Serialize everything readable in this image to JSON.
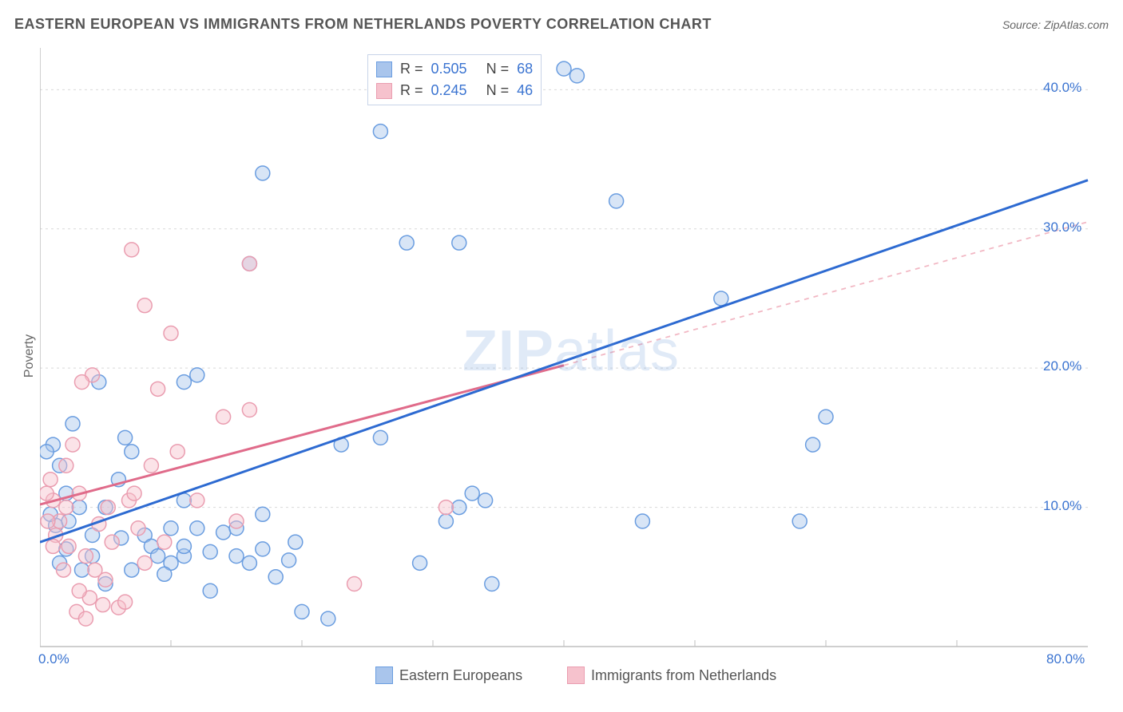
{
  "title": "EASTERN EUROPEAN VS IMMIGRANTS FROM NETHERLANDS POVERTY CORRELATION CHART",
  "source_label": "Source: ",
  "source_name": "ZipAtlas.com",
  "y_axis_label": "Poverty",
  "watermark_prefix": "ZIP",
  "watermark_suffix": "atlas",
  "colors": {
    "blue_fill": "#a9c5ec",
    "blue_stroke": "#6a9de0",
    "pink_fill": "#f6c2cd",
    "pink_stroke": "#ea9db0",
    "blue_line": "#2d6ad1",
    "pink_line": "#e06b8a",
    "pink_dash": "#f2b8c4",
    "grid": "#d9d9d9",
    "axis_line": "#bfbfbf",
    "tick_text": "#3b74d1",
    "title_text": "#555555",
    "bg": "#ffffff"
  },
  "chart": {
    "type": "scatter",
    "xlim": [
      0,
      80
    ],
    "ylim": [
      0,
      43
    ],
    "x_ticks": [
      {
        "v": 0,
        "label": "0.0%"
      },
      {
        "v": 80,
        "label": "80.0%"
      }
    ],
    "y_ticks": [
      {
        "v": 10,
        "label": "10.0%"
      },
      {
        "v": 20,
        "label": "20.0%"
      },
      {
        "v": 30,
        "label": "30.0%"
      },
      {
        "v": 40,
        "label": "40.0%"
      }
    ],
    "y_grid": [
      10,
      20,
      30,
      40
    ],
    "x_grid_minor": [
      10,
      20,
      30,
      40,
      50,
      60,
      70
    ],
    "marker_radius": 9,
    "marker_fill_opacity": 0.45,
    "series": [
      {
        "key": "blue",
        "label": "Eastern Europeans",
        "R": "0.505",
        "N": "68",
        "points": [
          [
            41,
            41
          ],
          [
            17,
            34
          ],
          [
            28,
            29
          ],
          [
            32,
            29
          ],
          [
            44,
            32
          ],
          [
            16,
            27.5
          ],
          [
            26,
            37
          ],
          [
            52,
            25
          ],
          [
            60,
            16.5
          ],
          [
            59,
            14.5
          ],
          [
            58,
            9
          ],
          [
            46,
            9
          ],
          [
            40,
            41.5
          ],
          [
            11,
            19
          ],
          [
            4,
            8
          ],
          [
            3,
            10
          ],
          [
            2,
            11
          ],
          [
            2,
            7
          ],
          [
            1,
            14.5
          ],
          [
            1.5,
            13
          ],
          [
            5,
            4.5
          ],
          [
            7,
            5.5
          ],
          [
            8,
            8
          ],
          [
            8.5,
            7.2
          ],
          [
            9,
            6.5
          ],
          [
            10,
            6
          ],
          [
            11,
            6.5
          ],
          [
            12,
            8.5
          ],
          [
            13,
            4
          ],
          [
            14,
            8.2
          ],
          [
            15,
            6.5
          ],
          [
            16,
            6
          ],
          [
            17,
            9.5
          ],
          [
            18,
            5
          ],
          [
            19,
            6.2
          ],
          [
            20,
            2.5
          ],
          [
            12,
            19.5
          ],
          [
            22,
            2.0
          ],
          [
            7,
            14
          ],
          [
            6.5,
            15
          ],
          [
            4.5,
            19
          ],
          [
            5,
            10
          ],
          [
            6,
            12
          ],
          [
            2.5,
            16
          ],
          [
            0.5,
            14
          ],
          [
            10,
            8.5
          ],
          [
            17,
            7
          ],
          [
            11,
            7.2
          ],
          [
            15,
            8.5
          ],
          [
            29,
            6
          ],
          [
            31,
            9
          ],
          [
            32,
            10
          ],
          [
            33,
            11
          ],
          [
            34,
            10.5
          ],
          [
            34.5,
            4.5
          ],
          [
            4,
            6.5
          ],
          [
            1.2,
            8.7
          ],
          [
            0.8,
            9.5
          ],
          [
            1.5,
            6
          ],
          [
            3.2,
            5.5
          ],
          [
            2.2,
            9
          ],
          [
            23,
            14.5
          ],
          [
            11,
            10.5
          ],
          [
            13,
            6.8
          ],
          [
            26,
            15
          ],
          [
            9.5,
            5.2
          ],
          [
            6.2,
            7.8
          ],
          [
            19.5,
            7.5
          ]
        ],
        "trend": {
          "x1": 0,
          "y1": 7.5,
          "x2": 80,
          "y2": 33.5,
          "dash": false
        }
      },
      {
        "key": "pink",
        "label": "Immigrants from Netherlands",
        "R": "0.245",
        "N": "46",
        "points": [
          [
            7,
            28.5
          ],
          [
            8,
            24.5
          ],
          [
            10,
            22.5
          ],
          [
            16,
            27.5
          ],
          [
            9,
            18.5
          ],
          [
            4,
            19.5
          ],
          [
            2.5,
            14.5
          ],
          [
            3,
            11
          ],
          [
            2,
            10
          ],
          [
            1.5,
            9
          ],
          [
            1,
            10.5
          ],
          [
            1.2,
            8
          ],
          [
            2.2,
            7.2
          ],
          [
            3.5,
            6.5
          ],
          [
            4.2,
            5.5
          ],
          [
            5,
            4.8
          ],
          [
            5.5,
            7.5
          ],
          [
            6,
            2.8
          ],
          [
            6.5,
            3.2
          ],
          [
            4.8,
            3.0
          ],
          [
            3.8,
            3.5
          ],
          [
            3.0,
            4.0
          ],
          [
            7.5,
            8.5
          ],
          [
            8,
            6
          ],
          [
            9.5,
            7.5
          ],
          [
            0.8,
            12
          ],
          [
            0.5,
            11
          ],
          [
            14,
            16.5
          ],
          [
            16,
            17
          ],
          [
            10.5,
            14
          ],
          [
            15,
            9
          ],
          [
            31,
            10
          ],
          [
            24,
            4.5
          ],
          [
            3.2,
            19
          ],
          [
            2.0,
            13
          ],
          [
            1.0,
            7.2
          ],
          [
            4.5,
            8.8
          ],
          [
            6.8,
            10.5
          ],
          [
            2.8,
            2.5
          ],
          [
            3.5,
            2.0
          ],
          [
            5.2,
            10
          ],
          [
            7.2,
            11
          ],
          [
            1.8,
            5.5
          ],
          [
            0.6,
            9.0
          ],
          [
            12,
            10.5
          ],
          [
            8.5,
            13
          ]
        ],
        "trend_solid": {
          "x1": 0,
          "y1": 10.2,
          "x2": 40,
          "y2": 20.2,
          "dash": false
        },
        "trend_dash": {
          "x1": 40,
          "y1": 20.2,
          "x2": 80,
          "y2": 30.5,
          "dash": true
        }
      }
    ]
  },
  "stats_box": {
    "rows": [
      {
        "swatch": "blue",
        "R_label": "R =",
        "R": "0.505",
        "N_label": "N =",
        "N": "68"
      },
      {
        "swatch": "pink",
        "R_label": "R =",
        "R": "0.245",
        "N_label": "N =",
        "N": "46"
      }
    ]
  },
  "legend_bottom": [
    {
      "swatch": "blue",
      "label": "Eastern Europeans"
    },
    {
      "swatch": "pink",
      "label": "Immigrants from Netherlands"
    }
  ]
}
